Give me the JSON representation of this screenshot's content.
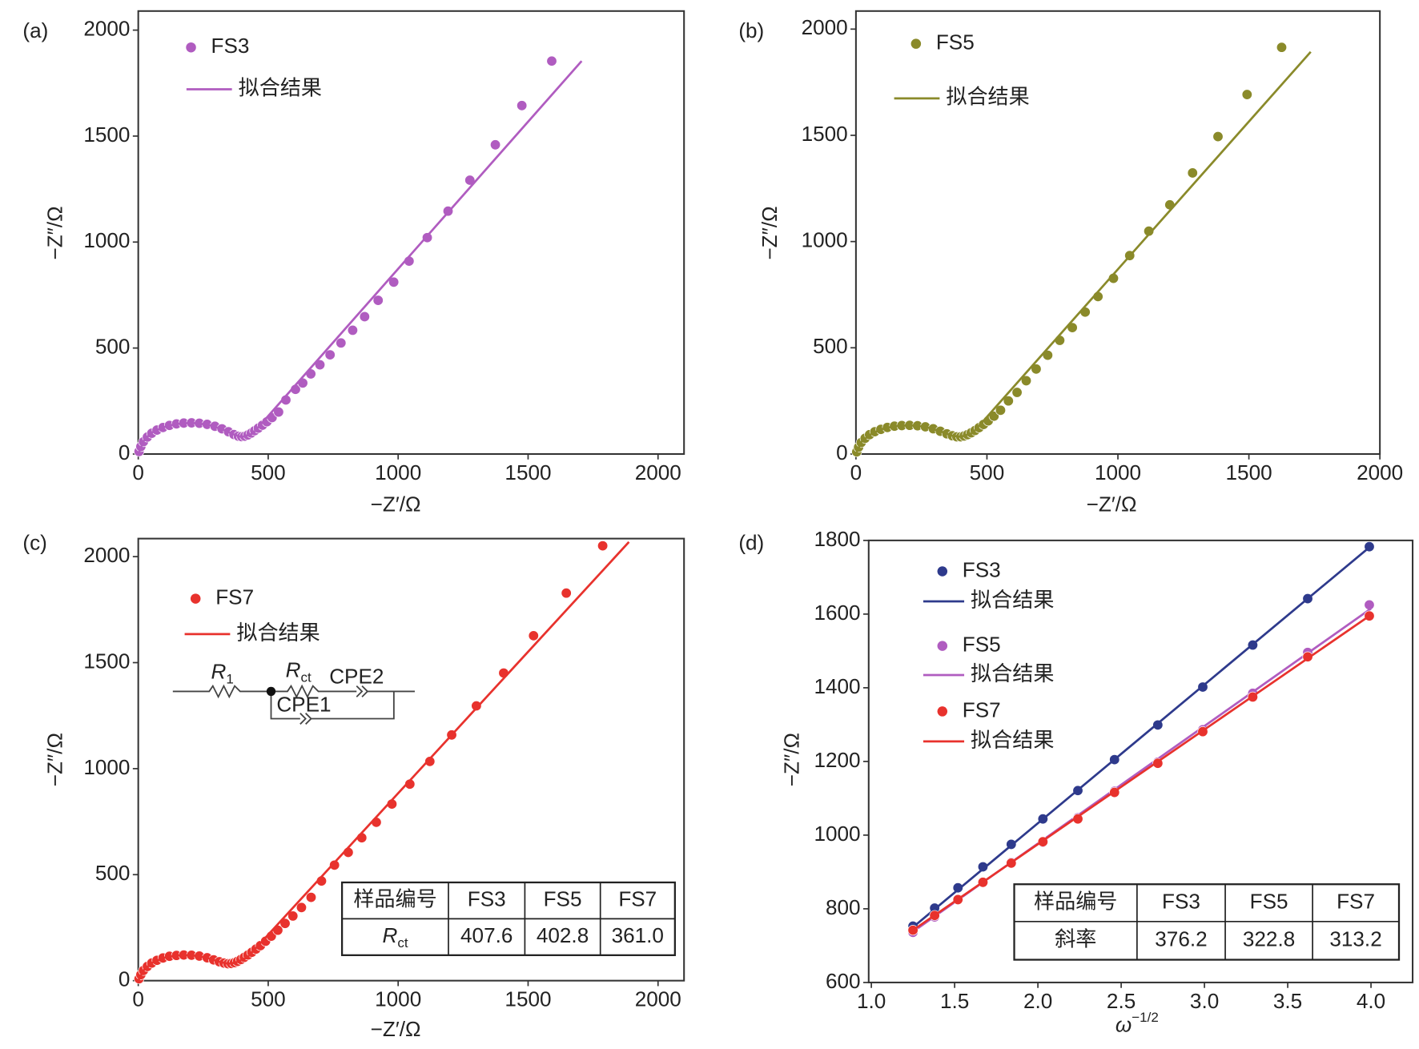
{
  "chart_data": [
    {
      "type": "scatter",
      "panel_label": "(a)",
      "xlabel": "−Z′/Ω",
      "ylabel": "−Z″/Ω",
      "xlim": [
        0,
        2100
      ],
      "ylim": [
        0,
        2090
      ],
      "xticks": [
        0,
        500,
        1000,
        1500,
        2000
      ],
      "yticks": [
        0,
        500,
        1000,
        1500,
        2000
      ],
      "series": [
        {
          "name": "FS3",
          "color": "#b05cc0",
          "mode": "markers",
          "x": [
            3,
            10,
            20,
            35,
            52,
            72,
            95,
            120,
            147,
            175,
            205,
            235,
            265,
            295,
            322,
            347,
            368,
            385,
            398,
            410,
            422,
            435,
            448,
            462,
            478,
            495,
            515,
            540,
            568,
            605,
            633,
            664,
            699,
            738,
            780,
            825,
            871,
            923,
            983,
            1042,
            1112,
            1192,
            1276,
            1374,
            1476,
            1591
          ],
          "y": [
            12,
            35,
            58,
            80,
            98,
            113,
            125,
            135,
            142,
            146,
            147,
            145,
            140,
            131,
            119,
            105,
            92,
            84,
            82,
            84,
            90,
            99,
            110,
            122,
            136,
            152,
            172,
            198,
            255,
            305,
            335,
            378,
            421,
            468,
            524,
            584,
            648,
            725,
            811,
            910,
            1021,
            1146,
            1292,
            1459,
            1644,
            1854
          ]
        },
        {
          "name": "拟合结果",
          "color": "#b05cc0",
          "mode": "line",
          "x": [
            0,
            20,
            50,
            95,
            147,
            205,
            265,
            322,
            368,
            398,
            440,
            1706
          ],
          "y": [
            0,
            60,
            100,
            126,
            142,
            147,
            139,
            118,
            92,
            80,
            96,
            1854
          ]
        }
      ]
    },
    {
      "type": "scatter",
      "panel_label": "(b)",
      "xlabel": "−Z′/Ω",
      "ylabel": "−Z″/Ω",
      "xlim": [
        0,
        2000
      ],
      "ylim": [
        0,
        2085
      ],
      "xticks": [
        0,
        500,
        1000,
        1500,
        2000
      ],
      "yticks": [
        0,
        500,
        1000,
        1500,
        2000
      ],
      "series": [
        {
          "name": "FS5",
          "color": "#8a8a2a",
          "mode": "markers",
          "x": [
            3,
            10,
            20,
            35,
            52,
            72,
            95,
            120,
            147,
            175,
            205,
            235,
            265,
            295,
            322,
            347,
            368,
            385,
            400,
            413,
            426,
            440,
            455,
            470,
            487,
            505,
            527,
            552,
            582,
            615,
            650,
            688,
            732,
            778,
            826,
            875,
            924,
            983,
            1045,
            1118,
            1198,
            1285,
            1382,
            1493,
            1625
          ],
          "y": [
            10,
            32,
            54,
            74,
            91,
            105,
            116,
            125,
            131,
            134,
            135,
            133,
            128,
            119,
            107,
            95,
            86,
            81,
            81,
            85,
            91,
            100,
            111,
            124,
            139,
            156,
            178,
            206,
            250,
            290,
            345,
            400,
            465,
            535,
            595,
            668,
            741,
            827,
            934,
            1049,
            1173,
            1323,
            1494,
            1692,
            1914
          ]
        },
        {
          "name": "拟合结果",
          "color": "#8a8a2a",
          "mode": "line",
          "x": [
            0,
            20,
            50,
            95,
            147,
            205,
            265,
            322,
            368,
            400,
            445,
            1736
          ],
          "y": [
            0,
            56,
            88,
            116,
            131,
            135,
            128,
            107,
            86,
            81,
            98,
            1893
          ]
        }
      ]
    },
    {
      "type": "scatter",
      "panel_label": "(c)",
      "xlabel": "−Z′/Ω",
      "ylabel": "−Z″/Ω",
      "xlim": [
        0,
        2100
      ],
      "ylim": [
        0,
        2085
      ],
      "xticks": [
        0,
        500,
        1000,
        1500,
        2000
      ],
      "yticks": [
        0,
        500,
        1000,
        1500,
        2000
      ],
      "series": [
        {
          "name": "FS7",
          "color": "#e8322d",
          "mode": "markers",
          "x": [
            3,
            10,
            20,
            35,
            52,
            72,
            95,
            120,
            147,
            175,
            205,
            235,
            265,
            290,
            312,
            330,
            345,
            358,
            370,
            382,
            395,
            408,
            422,
            437,
            453,
            470,
            490,
            512,
            537,
            565,
            595,
            628,
            665,
            705,
            755,
            808,
            860,
            916,
            976,
            1045,
            1122,
            1206,
            1301,
            1406,
            1521,
            1647,
            1787
          ],
          "y": [
            9,
            28,
            48,
            67,
            83,
            96,
            107,
            115,
            119,
            121,
            120,
            116,
            108,
            98,
            89,
            83,
            80,
            81,
            85,
            91,
            100,
            110,
            121,
            134,
            149,
            165,
            186,
            210,
            238,
            270,
            305,
            345,
            393,
            470,
            545,
            605,
            674,
            747,
            833,
            927,
            1034,
            1159,
            1296,
            1451,
            1627,
            1828,
            2051
          ]
        },
        {
          "name": "拟合结果",
          "color": "#e8322d",
          "mode": "line",
          "x": [
            0,
            20,
            52,
            95,
            147,
            205,
            265,
            312,
            345,
            375,
            420,
            1888
          ],
          "y": [
            0,
            48,
            83,
            107,
            119,
            120,
            108,
            89,
            80,
            85,
            110,
            2069
          ]
        }
      ],
      "circuit": {
        "r1": {
          "symbol": "R",
          "subscript": "1"
        },
        "rct": {
          "symbol": "R",
          "subscript": "ct"
        },
        "cpe2": "CPE2",
        "cpe1": "CPE1"
      },
      "table": {
        "headers": [
          "样品编号",
          "FS3",
          "FS5",
          "FS7"
        ],
        "rows": [
          {
            "label": {
              "symbol": "R",
              "subscript": "ct"
            },
            "cells": [
              "407.6",
              "402.8",
              "361.0"
            ]
          }
        ]
      }
    },
    {
      "type": "scatter",
      "panel_label": "(d)",
      "xlabel": {
        "symbol": "ω",
        "superscript": "−1/2"
      },
      "ylabel": "−Z″/Ω",
      "xlim": [
        0.984,
        4.25
      ],
      "ylim": [
        600,
        1800
      ],
      "xticks": [
        {
          "value": 1,
          "label": "1.0"
        },
        1.5,
        {
          "value": 2,
          "label": "2.0"
        },
        2.5,
        {
          "value": 3,
          "label": "3.0"
        },
        3.5,
        {
          "value": 4,
          "label": "4.0"
        }
      ],
      "yticks": [
        600,
        800,
        1000,
        1200,
        1400,
        1600,
        1800
      ],
      "series": [
        {
          "name": "FS3",
          "color": "#2e3a8c",
          "mode": "markers",
          "x": [
            1.25,
            1.38,
            1.52,
            1.67,
            1.84,
            2.03,
            2.24,
            2.46,
            2.72,
            2.99,
            3.29,
            3.62,
            3.99
          ],
          "y": [
            753,
            802,
            857,
            914,
            975,
            1044,
            1121,
            1205,
            1299,
            1402,
            1516,
            1642,
            1783
          ]
        },
        {
          "name": "拟合结果",
          "color": "#2e3a8c",
          "mode": "line",
          "x": [
            1.25,
            4.0
          ],
          "y": [
            750,
            1785
          ]
        },
        {
          "name": "FS5",
          "color": "#b05cc0",
          "mode": "markers",
          "x": [
            1.25,
            1.38,
            1.52,
            1.67,
            1.84,
            2.03,
            2.24,
            2.46,
            2.72,
            2.99,
            3.29,
            3.62,
            3.99
          ],
          "y": [
            736,
            778,
            825,
            872,
            926,
            980,
            1047,
            1119,
            1198,
            1286,
            1385,
            1496,
            1625
          ]
        },
        {
          "name": "拟合结果",
          "color": "#b05cc0",
          "mode": "line",
          "x": [
            1.25,
            4.0
          ],
          "y": [
            738,
            1615
          ]
        },
        {
          "name": "FS7",
          "color": "#e8322d",
          "mode": "markers",
          "x": [
            1.25,
            1.38,
            1.52,
            1.67,
            1.84,
            2.03,
            2.24,
            2.46,
            2.72,
            2.99,
            3.29,
            3.62,
            3.99
          ],
          "y": [
            742,
            782,
            825,
            872,
            924,
            982,
            1044,
            1116,
            1195,
            1281,
            1375,
            1484,
            1595
          ]
        },
        {
          "name": "拟合结果",
          "color": "#e8322d",
          "mode": "line",
          "x": [
            1.25,
            4.0
          ],
          "y": [
            742,
            1598
          ]
        }
      ],
      "table": {
        "headers": [
          "样品编号",
          "FS3",
          "FS5",
          "FS7"
        ],
        "rows": [
          {
            "label": "斜率",
            "cells": [
              "376.2",
              "322.8",
              "313.2"
            ]
          }
        ]
      }
    }
  ]
}
